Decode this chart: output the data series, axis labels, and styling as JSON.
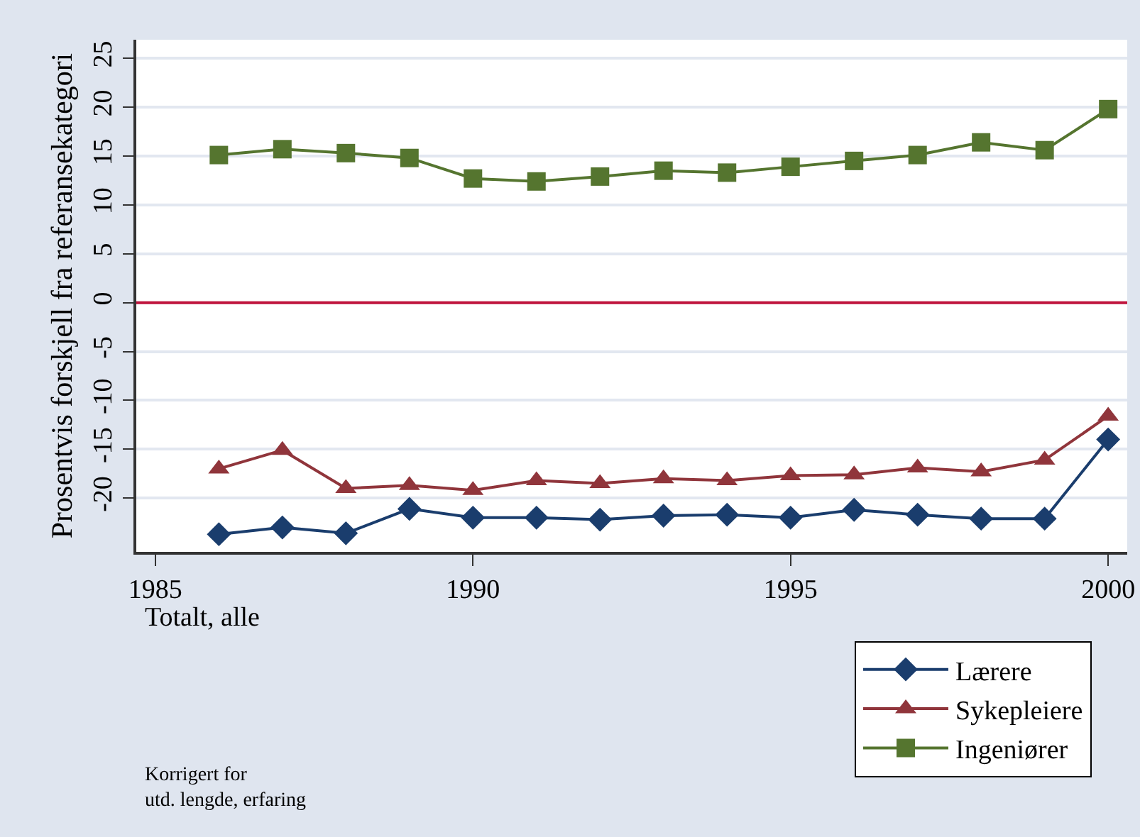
{
  "chart_data": {
    "type": "line",
    "ylabel": "Prosentvis forskjell fra referansekategori",
    "x": [
      1986,
      1987,
      1988,
      1989,
      1990,
      1991,
      1992,
      1993,
      1994,
      1995,
      1996,
      1997,
      1998,
      1999,
      2000
    ],
    "series": [
      {
        "name": "Lærere",
        "color": "#1a3d6d",
        "marker": "diamond",
        "values": [
          -23.7,
          -23.0,
          -23.6,
          -21.1,
          -22.0,
          -22.0,
          -22.2,
          -21.8,
          -21.7,
          -22.0,
          -21.2,
          -21.7,
          -22.1,
          -22.1,
          -14.0
        ]
      },
      {
        "name": "Sykepleiere",
        "color": "#90353b",
        "marker": "triangle",
        "values": [
          -17.0,
          -15.1,
          -19.0,
          -18.7,
          -19.2,
          -18.2,
          -18.5,
          -18.0,
          -18.2,
          -17.7,
          -17.6,
          -16.9,
          -17.3,
          -16.1,
          -11.6
        ]
      },
      {
        "name": "Ingeniører",
        "color": "#55752f",
        "marker": "square",
        "values": [
          15.1,
          15.7,
          15.3,
          14.8,
          12.7,
          12.4,
          12.9,
          13.5,
          13.3,
          13.9,
          14.5,
          15.1,
          16.4,
          15.6,
          19.8
        ]
      }
    ],
    "xlim": [
      1984.7,
      2000.3
    ],
    "xticks": [
      1985,
      1990,
      1995,
      2000
    ],
    "ylim": [
      -25.5,
      26.9
    ],
    "yticks": [
      -20,
      -15,
      -10,
      -5,
      0,
      5,
      10,
      15,
      20,
      25
    ],
    "ref_lines": [
      {
        "axis": "y",
        "value": 0,
        "color": "#c0143c"
      }
    ],
    "grid": "y",
    "legend": "bottom right",
    "line_style": "solid",
    "annotations": [
      "Totalt, alle",
      "Korrigert for\nutd. lengde, erfaring"
    ]
  }
}
